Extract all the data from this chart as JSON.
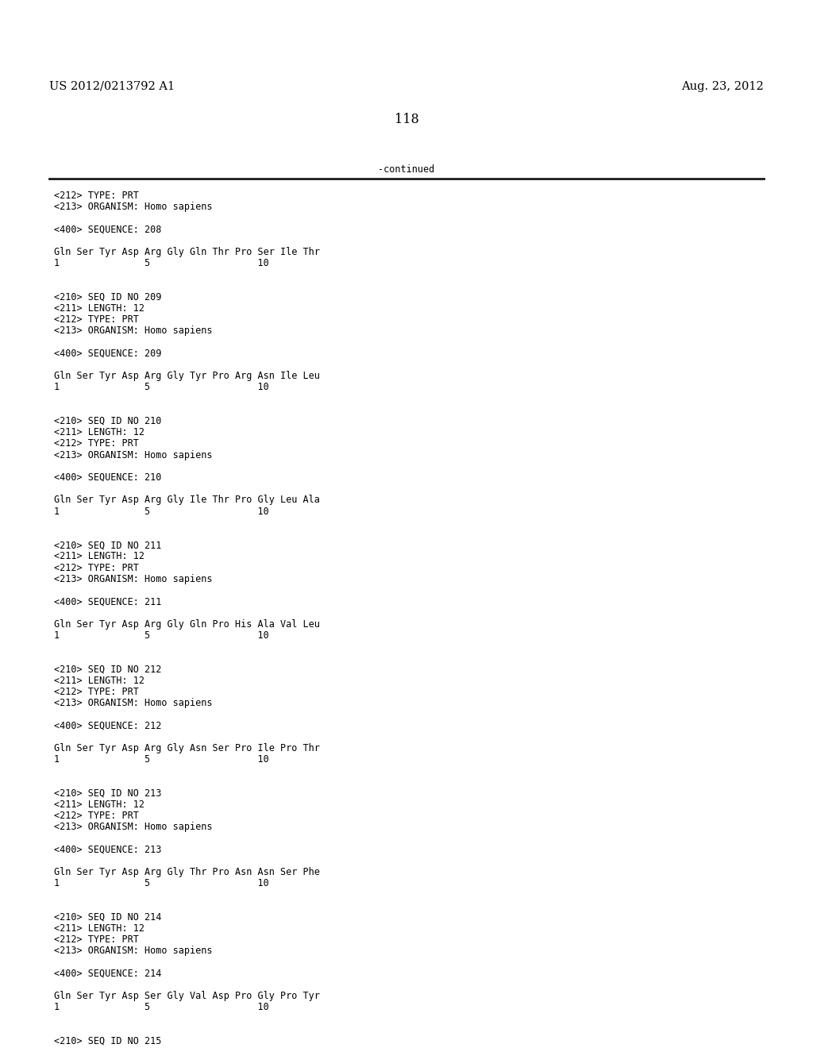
{
  "header_left": "US 2012/0213792 A1",
  "header_right": "Aug. 23, 2012",
  "page_number": "118",
  "continued_label": "-continued",
  "background_color": "#ffffff",
  "text_color": "#000000",
  "font_size_header": 10.5,
  "font_size_body": 8.5,
  "font_size_page": 11.5,
  "content_lines": [
    "<212> TYPE: PRT",
    "<213> ORGANISM: Homo sapiens",
    "",
    "<400> SEQUENCE: 208",
    "",
    "Gln Ser Tyr Asp Arg Gly Gln Thr Pro Ser Ile Thr",
    "1               5                   10",
    "",
    "",
    "<210> SEQ ID NO 209",
    "<211> LENGTH: 12",
    "<212> TYPE: PRT",
    "<213> ORGANISM: Homo sapiens",
    "",
    "<400> SEQUENCE: 209",
    "",
    "Gln Ser Tyr Asp Arg Gly Tyr Pro Arg Asn Ile Leu",
    "1               5                   10",
    "",
    "",
    "<210> SEQ ID NO 210",
    "<211> LENGTH: 12",
    "<212> TYPE: PRT",
    "<213> ORGANISM: Homo sapiens",
    "",
    "<400> SEQUENCE: 210",
    "",
    "Gln Ser Tyr Asp Arg Gly Ile Thr Pro Gly Leu Ala",
    "1               5                   10",
    "",
    "",
    "<210> SEQ ID NO 211",
    "<211> LENGTH: 12",
    "<212> TYPE: PRT",
    "<213> ORGANISM: Homo sapiens",
    "",
    "<400> SEQUENCE: 211",
    "",
    "Gln Ser Tyr Asp Arg Gly Gln Pro His Ala Val Leu",
    "1               5                   10",
    "",
    "",
    "<210> SEQ ID NO 212",
    "<211> LENGTH: 12",
    "<212> TYPE: PRT",
    "<213> ORGANISM: Homo sapiens",
    "",
    "<400> SEQUENCE: 212",
    "",
    "Gln Ser Tyr Asp Arg Gly Asn Ser Pro Ile Pro Thr",
    "1               5                   10",
    "",
    "",
    "<210> SEQ ID NO 213",
    "<211> LENGTH: 12",
    "<212> TYPE: PRT",
    "<213> ORGANISM: Homo sapiens",
    "",
    "<400> SEQUENCE: 213",
    "",
    "Gln Ser Tyr Asp Arg Gly Thr Pro Asn Asn Ser Phe",
    "1               5                   10",
    "",
    "",
    "<210> SEQ ID NO 214",
    "<211> LENGTH: 12",
    "<212> TYPE: PRT",
    "<213> ORGANISM: Homo sapiens",
    "",
    "<400> SEQUENCE: 214",
    "",
    "Gln Ser Tyr Asp Ser Gly Val Asp Pro Gly Pro Tyr",
    "1               5                   10",
    "",
    "",
    "<210> SEQ ID NO 215"
  ]
}
